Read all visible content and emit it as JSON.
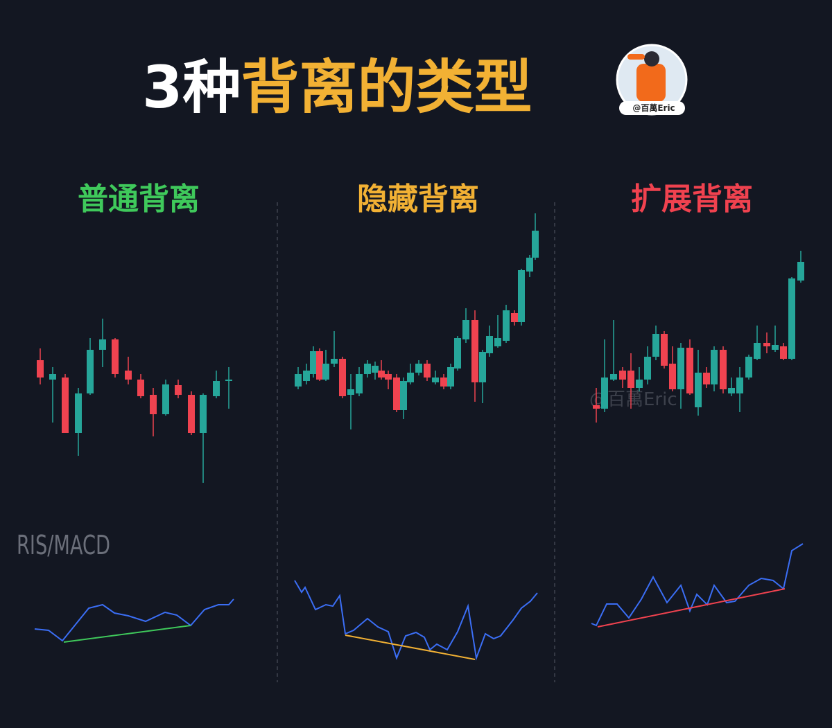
{
  "header": {
    "title_prefix": "3种",
    "title_main": "背离的类型",
    "badge": "@百萬Eric"
  },
  "panels": [
    {
      "title": "普通背离"
    },
    {
      "title": "隐藏背离"
    },
    {
      "title": "扩展背离"
    }
  ],
  "indicator_label": "RIS/MACD",
  "watermark": "@百萬Eric"
}
